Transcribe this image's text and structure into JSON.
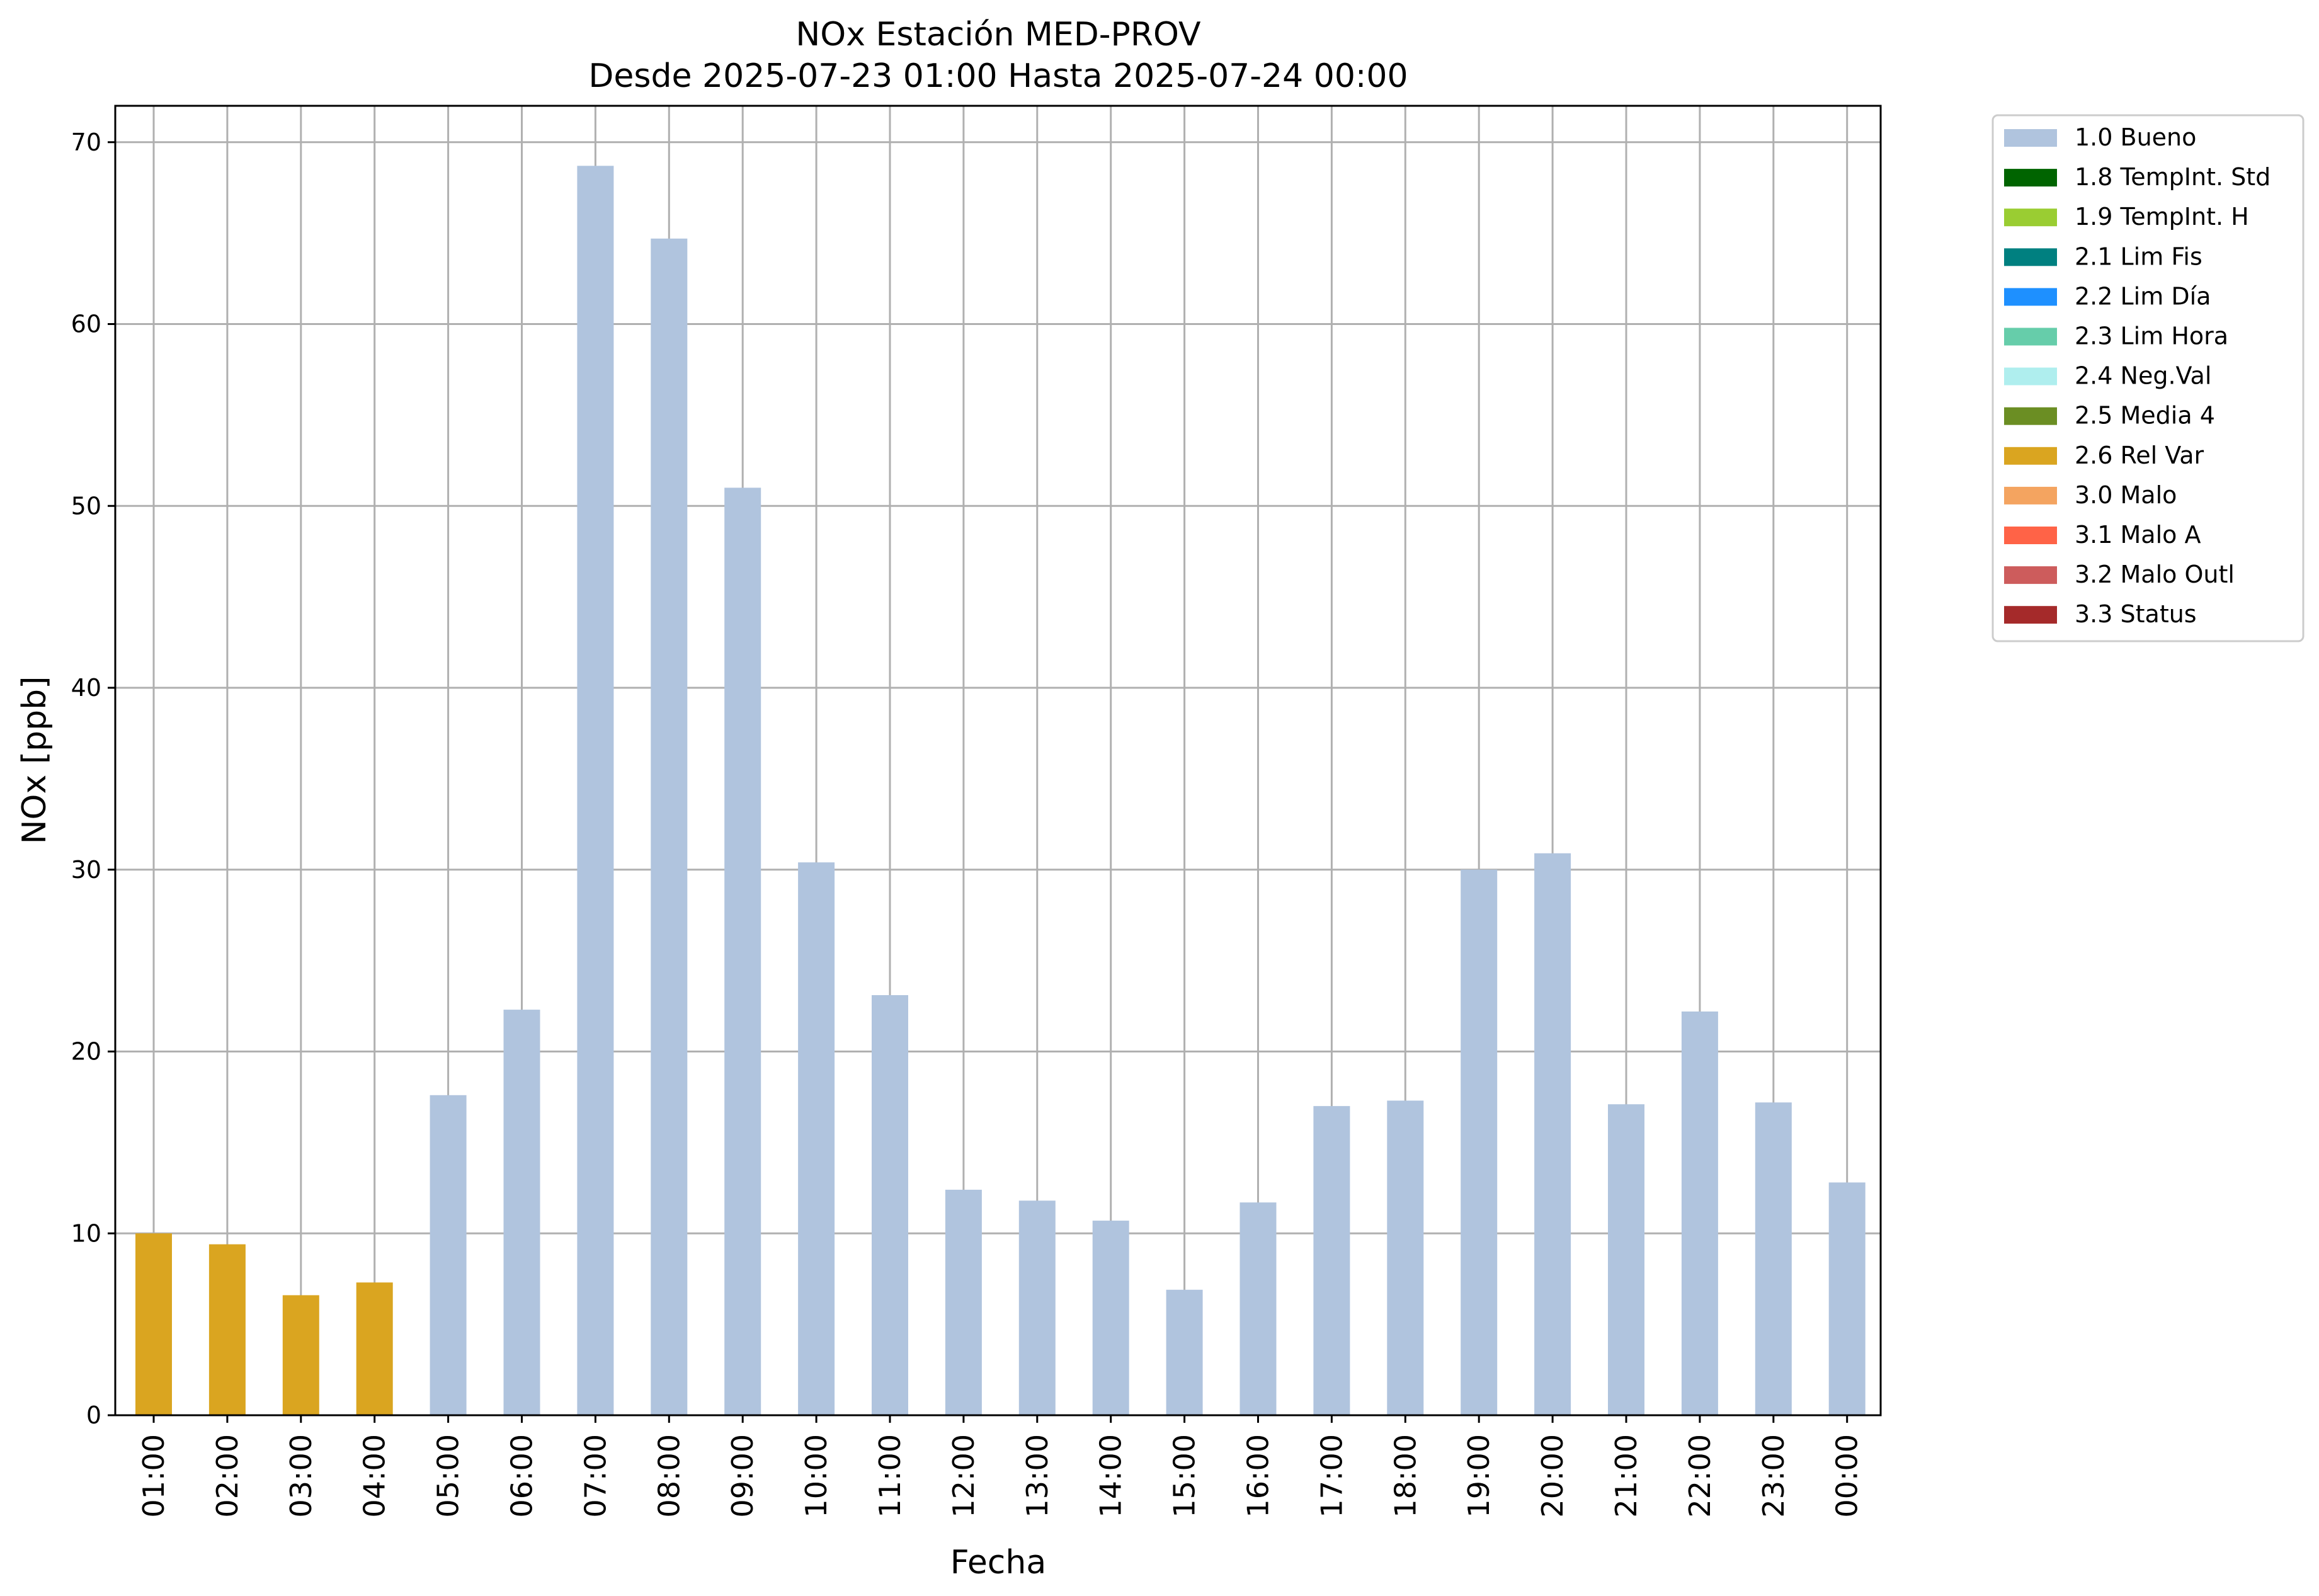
{
  "chart_data": {
    "type": "bar",
    "title": "NOx Estación MED-PROV",
    "subtitle": "Desde 2025-07-23 01:00 Hasta 2025-07-24 00:00",
    "xlabel": "Fecha",
    "ylabel": "NOx [ppb]",
    "ylim": [
      0,
      72
    ],
    "yticks": [
      0,
      10,
      20,
      30,
      40,
      50,
      60,
      70
    ],
    "grid": true,
    "legend_position": "outside-top-right",
    "categories": [
      "01:00",
      "02:00",
      "03:00",
      "04:00",
      "05:00",
      "06:00",
      "07:00",
      "08:00",
      "09:00",
      "10:00",
      "11:00",
      "12:00",
      "13:00",
      "14:00",
      "15:00",
      "16:00",
      "17:00",
      "18:00",
      "19:00",
      "20:00",
      "21:00",
      "22:00",
      "23:00",
      "00:00"
    ],
    "values": [
      10.0,
      9.4,
      6.6,
      7.3,
      17.6,
      22.3,
      68.7,
      64.7,
      51.0,
      30.4,
      23.1,
      12.4,
      11.8,
      10.7,
      6.9,
      11.7,
      17.0,
      17.3,
      30.0,
      30.9,
      17.1,
      22.2,
      17.2,
      12.8
    ],
    "flags": [
      "2.6 Rel Var",
      "2.6 Rel Var",
      "2.6 Rel Var",
      "2.6 Rel Var",
      "1.0 Bueno",
      "1.0 Bueno",
      "1.0 Bueno",
      "1.0 Bueno",
      "1.0 Bueno",
      "1.0 Bueno",
      "1.0 Bueno",
      "1.0 Bueno",
      "1.0 Bueno",
      "1.0 Bueno",
      "1.0 Bueno",
      "1.0 Bueno",
      "1.0 Bueno",
      "1.0 Bueno",
      "1.0 Bueno",
      "1.0 Bueno",
      "1.0 Bueno",
      "1.0 Bueno",
      "1.0 Bueno",
      "1.0 Bueno"
    ],
    "legend": [
      {
        "label": "1.0 Bueno",
        "color": "#b0c4de"
      },
      {
        "label": "1.8 TempInt. Std",
        "color": "#006400"
      },
      {
        "label": "1.9 TempInt. H",
        "color": "#9acd32"
      },
      {
        "label": "2.1 Lim Fis",
        "color": "#008080"
      },
      {
        "label": "2.2 Lim Día",
        "color": "#1e90ff"
      },
      {
        "label": "2.3 Lim Hora",
        "color": "#66cdaa"
      },
      {
        "label": "2.4 Neg.Val",
        "color": "#afeeee"
      },
      {
        "label": "2.5 Media 4",
        "color": "#6b8e23"
      },
      {
        "label": "2.6 Rel Var",
        "color": "#daa520"
      },
      {
        "label": "3.0 Malo",
        "color": "#f4a460"
      },
      {
        "label": "3.1 Malo A",
        "color": "#ff6347"
      },
      {
        "label": "3.2 Malo Outl",
        "color": "#cd5c5c"
      },
      {
        "label": "3.3 Status",
        "color": "#a52a2a"
      }
    ]
  }
}
